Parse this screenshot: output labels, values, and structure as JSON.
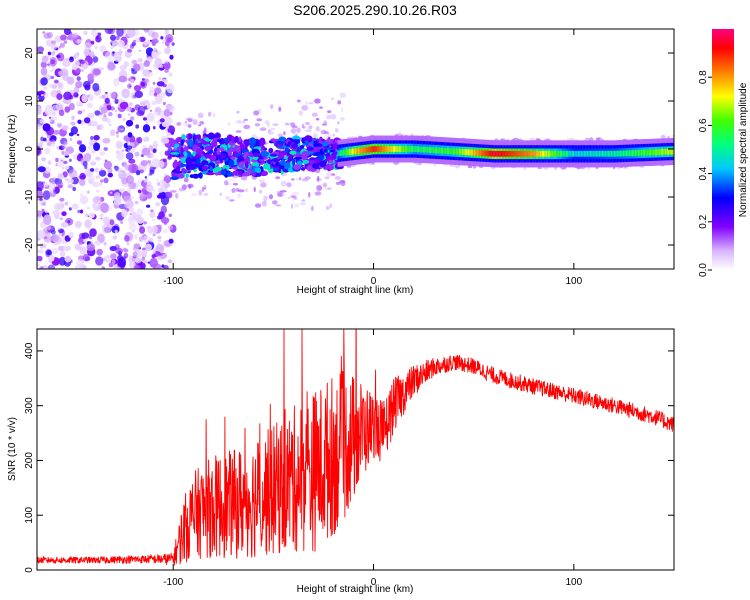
{
  "title": "S206.2025.290.10.26.R03",
  "chart_data": [
    {
      "type": "heatmap",
      "xlabel": "Height of straight line (km)",
      "ylabel": "Frequency (Hz)",
      "xlim": [
        -168,
        150
      ],
      "ylim": [
        -25,
        25
      ],
      "xticks": [
        -100,
        0,
        100
      ],
      "yticks": [
        -20,
        -10,
        0,
        10,
        20
      ],
      "colorbar": {
        "label": "Normalized spectral amplitude",
        "range": [
          0,
          1
        ],
        "ticks": [
          0.0,
          0.2,
          0.4,
          0.6,
          0.8
        ],
        "tick_labels": [
          "0.0",
          "0.2",
          "0.4",
          "0.6",
          "0.8"
        ]
      },
      "ridge": {
        "x": [
          -100,
          -80,
          -60,
          -40,
          -20,
          -10,
          0,
          20,
          40,
          60,
          80,
          100,
          120,
          150
        ],
        "y": [
          -2,
          -1,
          -2,
          -1,
          -1,
          -0.5,
          0,
          0,
          -0.5,
          -1,
          -1,
          -1,
          -1,
          -0.5
        ],
        "amplitude": [
          0.3,
          0.3,
          0.25,
          0.3,
          0.4,
          0.75,
          0.9,
          0.55,
          0.6,
          0.95,
          0.8,
          0.45,
          0.5,
          0.7
        ]
      }
    },
    {
      "type": "line",
      "xlabel": "Height of straight line (km)",
      "ylabel": "SNR (10 * v/v)",
      "xlim": [
        -168,
        150
      ],
      "ylim": [
        0,
        440
      ],
      "xticks": [
        -100,
        0,
        100
      ],
      "yticks": [
        0,
        100,
        200,
        300,
        400
      ],
      "color": "#ff0000",
      "series": [
        {
          "x": [
            -168,
            -140,
            -110,
            -100,
            -95,
            -90,
            -80,
            -70,
            -60,
            -50,
            -40,
            -30,
            -20,
            -15,
            -10,
            -5,
            0,
            5,
            10,
            20,
            30,
            40,
            50,
            60,
            80,
            100,
            120,
            140,
            150
          ],
          "y": [
            18,
            18,
            20,
            20,
            70,
            100,
            115,
            120,
            130,
            145,
            165,
            180,
            210,
            225,
            240,
            255,
            265,
            250,
            300,
            345,
            370,
            380,
            372,
            355,
            335,
            318,
            300,
            280,
            265
          ],
          "noise": [
            6,
            6,
            8,
            12,
            60,
            80,
            95,
            100,
            110,
            120,
            135,
            150,
            150,
            140,
            120,
            90,
            60,
            60,
            50,
            30,
            18,
            15,
            15,
            15,
            15,
            15,
            15,
            15,
            15
          ]
        }
      ]
    }
  ]
}
